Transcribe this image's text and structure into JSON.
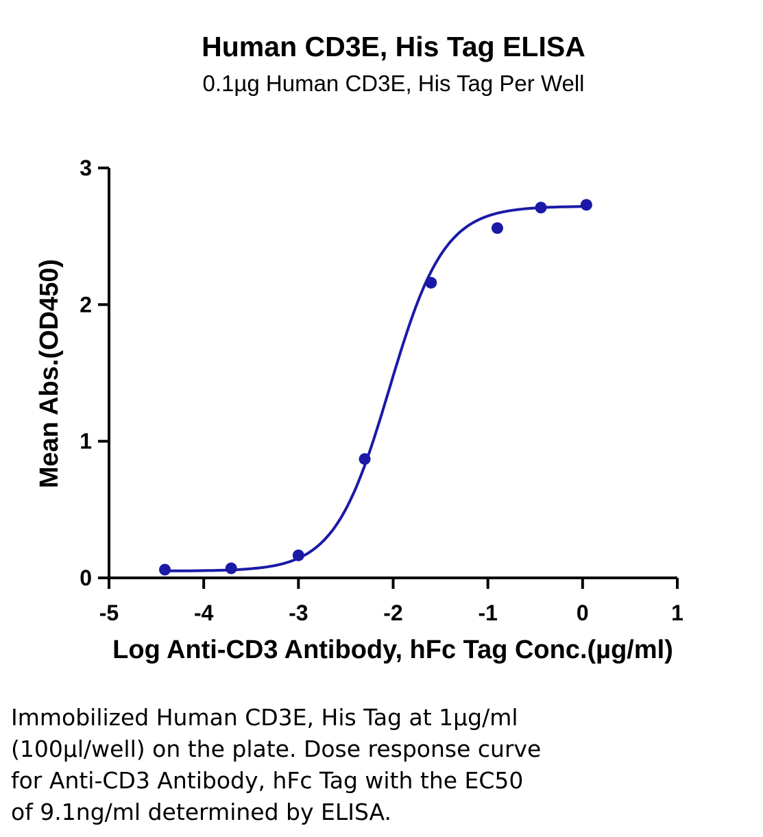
{
  "chart_data": {
    "type": "scatter",
    "title": "Human CD3E, His Tag ELISA",
    "subtitle": "0.1µg Human CD3E, His Tag Per Well",
    "xlabel": "Log Anti-CD3 Antibody, hFc Tag Conc.(µg/ml)",
    "ylabel": "Mean Abs.(OD450)",
    "xlim": [
      -5,
      1
    ],
    "ylim": [
      0,
      3
    ],
    "x_ticks": [
      -5,
      -4,
      -3,
      -2,
      -1,
      0,
      1
    ],
    "y_ticks": [
      0,
      1,
      2,
      3
    ],
    "x_tick_labels": [
      "-5",
      "-4",
      "-3",
      "-2",
      "-1",
      "0",
      "1"
    ],
    "y_tick_labels": [
      "0",
      "1",
      "2",
      "3"
    ],
    "grid": false,
    "legend": "none",
    "series": [
      {
        "x": [
          -4.41,
          -3.71,
          -3.0,
          -2.3,
          -1.6,
          -0.9,
          -0.44,
          0.04
        ],
        "y": [
          0.06,
          0.07,
          0.165,
          0.87,
          2.16,
          2.56,
          2.71,
          2.73
        ],
        "fit": {
          "model": "4PL",
          "bottom": 0.05,
          "top": 2.72,
          "log_ec50": -2.04,
          "hill": 1.5
        }
      }
    ],
    "colors": {
      "series": "#1a1aa6",
      "axis": "#000000"
    }
  },
  "caption": {
    "lines": [
      "Immobilized Human CD3E, His Tag at 1µg/ml",
      "(100µl/well) on the plate. Dose response curve",
      "for Anti-CD3 Antibody, hFc Tag with the EC50",
      "of 9.1ng/ml determined by ELISA."
    ]
  }
}
